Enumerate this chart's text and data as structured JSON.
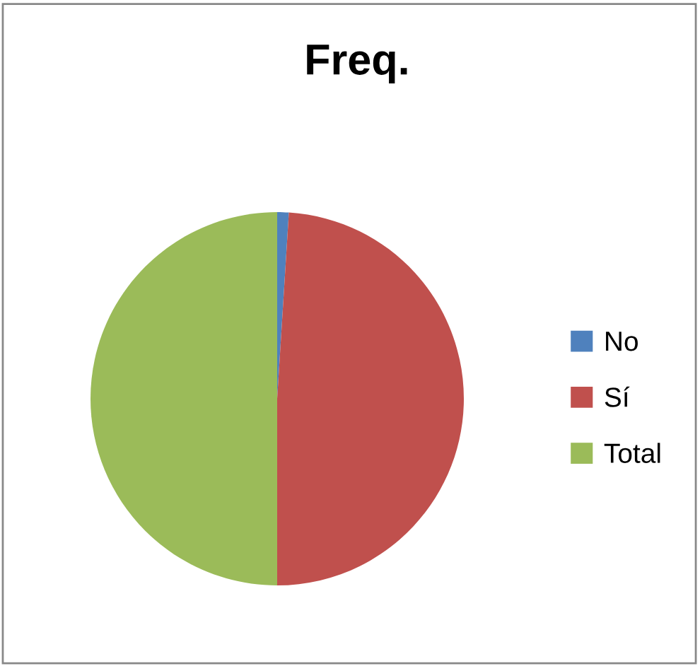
{
  "chart_data": {
    "type": "pie",
    "title": "Freq.",
    "categories": [
      "No",
      "Sí",
      "Total"
    ],
    "values": [
      1,
      49,
      50
    ],
    "colors": [
      "#4f81bd",
      "#c0504d",
      "#9bbb59"
    ],
    "legend": "right"
  }
}
